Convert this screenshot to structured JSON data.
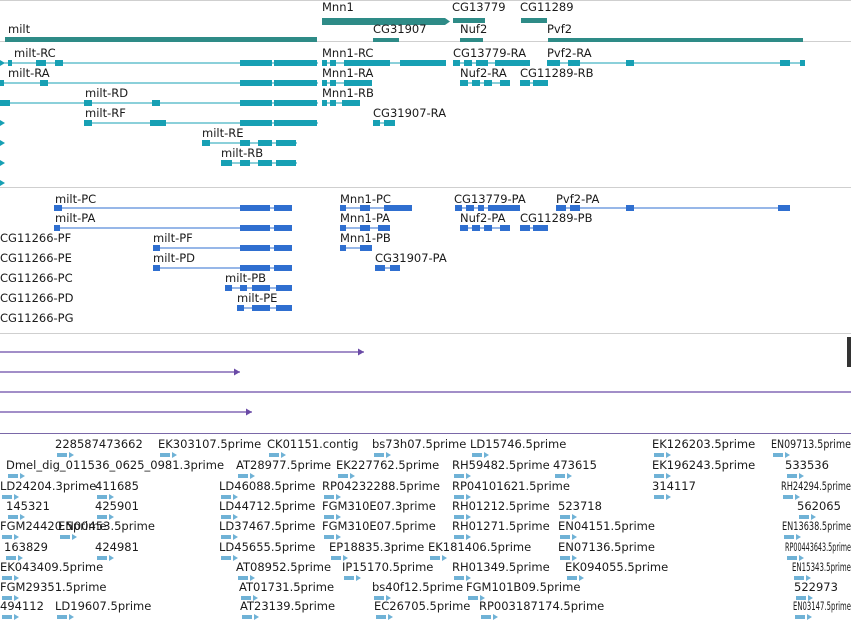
{
  "colors": {
    "gene": "#2e8b87",
    "transcript": "#17a0b4",
    "cds": "#2f6fd0",
    "misc": "#6a4aa6",
    "est": "#6fb2d6",
    "separator": "#b0b0b0"
  },
  "tracks": {
    "genes": [
      {
        "label": "milt"
      },
      {
        "label": "Mnn1"
      },
      {
        "label": "CG31907"
      },
      {
        "label": "CG13779"
      },
      {
        "label": "Nuf2"
      },
      {
        "label": "CG11289"
      },
      {
        "label": "Pvf2"
      }
    ],
    "transcripts": [
      {
        "label": "milt-RC"
      },
      {
        "label": "milt-RA"
      },
      {
        "label": "milt-RD"
      },
      {
        "label": "milt-RF"
      },
      {
        "label": "milt-RE"
      },
      {
        "label": "milt-RB"
      },
      {
        "label": "Mnn1-RC"
      },
      {
        "label": "Mnn1-RA"
      },
      {
        "label": "Mnn1-RB"
      },
      {
        "label": "CG31907-RA"
      },
      {
        "label": "CG13779-RA"
      },
      {
        "label": "Nuf2-RA"
      },
      {
        "label": "Pvf2-RA"
      },
      {
        "label": "CG11289-RB"
      }
    ],
    "proteins": [
      {
        "label": "milt-PC"
      },
      {
        "label": "milt-PA"
      },
      {
        "label": "milt-PF"
      },
      {
        "label": "milt-PD"
      },
      {
        "label": "milt-PB"
      },
      {
        "label": "milt-PE"
      },
      {
        "label": "Mnn1-PC"
      },
      {
        "label": "Mnn1-PA"
      },
      {
        "label": "Mnn1-PB"
      },
      {
        "label": "CG31907-PA"
      },
      {
        "label": "CG13779-PA"
      },
      {
        "label": "Nuf2-PA"
      },
      {
        "label": "Pvf2-PA"
      },
      {
        "label": "CG11289-PB"
      },
      {
        "label": "CG11266-PF"
      },
      {
        "label": "CG11266-PE"
      },
      {
        "label": "CG11266-PC"
      },
      {
        "label": "CG11266-PD"
      },
      {
        "label": "CG11266-PG"
      }
    ],
    "ests": [
      {
        "label": "228587473662"
      },
      {
        "label": "EK303107.5prime"
      },
      {
        "label": "CK01151.contig"
      },
      {
        "label": "bs73h07.5prime"
      },
      {
        "label": "LD15746.5prime"
      },
      {
        "label": "EK126203.5prime"
      },
      {
        "label": "EN09713.5prime"
      },
      {
        "label": "Dmel_dig_011536_0625_0981.3prime"
      },
      {
        "label": "AT28977.5prime"
      },
      {
        "label": "EK227762.5prime"
      },
      {
        "label": "RH59482.5prime"
      },
      {
        "label": "473615"
      },
      {
        "label": "EK196243.5prime"
      },
      {
        "label": "533536"
      },
      {
        "label": "LD24204.3prime"
      },
      {
        "label": "411685"
      },
      {
        "label": "LD46088.5prime"
      },
      {
        "label": "RP04232288.5prime"
      },
      {
        "label": "RP04101621.5prime"
      },
      {
        "label": "314117"
      },
      {
        "label": "RH24294.5prime"
      },
      {
        "label": "145321"
      },
      {
        "label": "425901"
      },
      {
        "label": "LD44712.5prime"
      },
      {
        "label": "FGM310E07.3prime"
      },
      {
        "label": "RH01212.5prime"
      },
      {
        "label": "523718"
      },
      {
        "label": "562065"
      },
      {
        "label": "FGM24420.5prime"
      },
      {
        "label": "EN00453.5prime"
      },
      {
        "label": "LD37467.5prime"
      },
      {
        "label": "FGM310E07.5prime"
      },
      {
        "label": "RH01271.5prime"
      },
      {
        "label": "EN04151.5prime"
      },
      {
        "label": "EN13638.5prime"
      },
      {
        "label": "163829"
      },
      {
        "label": "424981"
      },
      {
        "label": "LD45655.5prime"
      },
      {
        "label": "EP18835.3prime"
      },
      {
        "label": "EK181406.5prime"
      },
      {
        "label": "EN07136.5prime"
      },
      {
        "label": "RP00443643.5prime"
      },
      {
        "label": "EK043409.5prime"
      },
      {
        "label": "AT08952.5prime"
      },
      {
        "label": "IP15170.5prime"
      },
      {
        "label": "RH01349.5prime"
      },
      {
        "label": "EK094055.5prime"
      },
      {
        "label": "EN15343.5prime"
      },
      {
        "label": "FGM29351.5prime"
      },
      {
        "label": "AT01731.5prime"
      },
      {
        "label": "bs40f12.5prime"
      },
      {
        "label": "FGM101B09.5prime"
      },
      {
        "label": "522973"
      },
      {
        "label": "494112"
      },
      {
        "label": "LD19607.5prime"
      },
      {
        "label": "AT23139.5prime"
      },
      {
        "label": "EC26705.5prime"
      },
      {
        "label": "RP003187174.5prime"
      },
      {
        "label": "EN03147.5prime"
      }
    ]
  }
}
